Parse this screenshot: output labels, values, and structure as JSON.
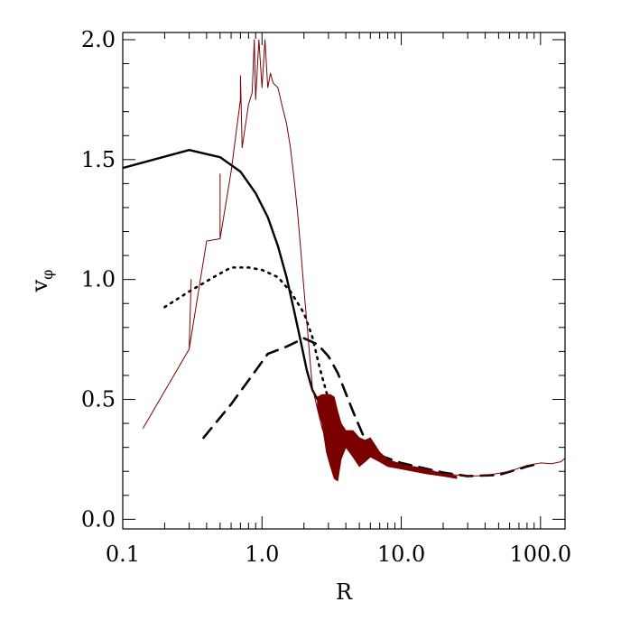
{
  "chart_data": {
    "type": "line",
    "xlabel": "R",
    "ylabel": "v",
    "ylabel_sub": "φ",
    "xscale": "log",
    "xlim": [
      0.1,
      150
    ],
    "ylim": [
      -0.04,
      2.03
    ],
    "x_ticks": [
      {
        "value": 0.1,
        "label": "0.1"
      },
      {
        "value": 1,
        "label": "1.0"
      },
      {
        "value": 10,
        "label": "10.0"
      },
      {
        "value": 100,
        "label": "100.0"
      }
    ],
    "y_ticks": [
      {
        "value": 0.0,
        "label": "0.0"
      },
      {
        "value": 0.5,
        "label": "0.5"
      },
      {
        "value": 1.0,
        "label": "1.0"
      },
      {
        "value": 1.5,
        "label": "1.5"
      },
      {
        "value": 2.0,
        "label": "2.0"
      }
    ],
    "grid": false,
    "series": [
      {
        "style": "solid",
        "color": "#000000",
        "x": [
          0.1,
          0.3,
          0.5,
          0.7,
          0.9,
          1.1,
          1.3,
          1.5,
          1.7,
          1.9,
          2.1,
          2.3,
          2.5
        ],
        "y": [
          1.465,
          1.54,
          1.51,
          1.45,
          1.36,
          1.26,
          1.14,
          1.01,
          0.87,
          0.74,
          0.62,
          0.54,
          0.5
        ]
      },
      {
        "style": "dotted",
        "color": "#000000",
        "x": [
          0.2,
          0.3,
          0.45,
          0.6,
          0.8,
          1.0,
          1.3,
          1.6,
          2.0,
          2.3,
          2.6,
          3.0,
          3.5
        ],
        "y": [
          0.885,
          0.95,
          1.01,
          1.05,
          1.05,
          1.04,
          1.01,
          0.95,
          0.86,
          0.76,
          0.63,
          0.5,
          0.39
        ]
      },
      {
        "style": "dashed",
        "color": "#000000",
        "x": [
          0.38,
          0.6,
          0.9,
          1.1,
          1.5,
          2.0,
          2.5,
          3.0,
          3.5,
          4.5,
          6,
          10,
          20,
          30,
          50,
          80,
          100
        ],
        "y": [
          0.34,
          0.48,
          0.62,
          0.69,
          0.72,
          0.755,
          0.73,
          0.68,
          0.61,
          0.45,
          0.28,
          0.235,
          0.195,
          0.18,
          0.185,
          0.22,
          0.235
        ]
      },
      {
        "style": "thin-noisy",
        "color": "#7a0000",
        "x": [
          0.14,
          0.3,
          0.31,
          0.3,
          0.4,
          0.5,
          0.5,
          0.5,
          0.6,
          0.7,
          0.7,
          0.72,
          0.8,
          0.85,
          0.88,
          0.9,
          0.95,
          1.0,
          1.05,
          1.1,
          1.15,
          1.2,
          1.3,
          1.4,
          1.5,
          1.6,
          1.7,
          1.8,
          1.9,
          2.0,
          2.1,
          2.2,
          2.3,
          2.5,
          2.7,
          2.9,
          3.1,
          3.3,
          3.5,
          3.8,
          4.2,
          4.6,
          5.0,
          5.5,
          6.0,
          6.5,
          7.0,
          8,
          10,
          15,
          20,
          25,
          30,
          40,
          60,
          80,
          100,
          120,
          140,
          150
        ],
        "y": [
          0.38,
          0.71,
          1.0,
          0.71,
          1.16,
          1.17,
          1.44,
          1.17,
          1.45,
          1.75,
          1.85,
          1.55,
          1.73,
          1.78,
          2.0,
          1.75,
          2.0,
          1.8,
          2.0,
          1.8,
          1.86,
          1.82,
          1.8,
          1.72,
          1.65,
          1.55,
          1.42,
          1.28,
          1.12,
          0.96,
          0.82,
          0.68,
          0.55,
          0.46,
          0.38,
          0.33,
          0.3,
          0.26,
          0.3,
          0.33,
          0.34,
          0.32,
          0.3,
          0.31,
          0.32,
          0.3,
          0.27,
          0.24,
          0.23,
          0.2,
          0.19,
          0.185,
          0.18,
          0.182,
          0.2,
          0.225,
          0.235,
          0.232,
          0.24,
          0.255
        ]
      },
      {
        "style": "band",
        "color": "#7a0000",
        "x": [
          2.5,
          2.7,
          2.9,
          3.1,
          3.3,
          3.5,
          3.7,
          4.0,
          4.5,
          5.0,
          5.5,
          6.0,
          7.0,
          8.0,
          10,
          15,
          20,
          25
        ],
        "y_low": [
          0.46,
          0.4,
          0.28,
          0.22,
          0.17,
          0.16,
          0.25,
          0.3,
          0.26,
          0.22,
          0.24,
          0.26,
          0.24,
          0.22,
          0.21,
          0.19,
          0.18,
          0.17
        ],
        "y_high": [
          0.51,
          0.52,
          0.52,
          0.52,
          0.51,
          0.45,
          0.4,
          0.37,
          0.37,
          0.34,
          0.33,
          0.34,
          0.28,
          0.25,
          0.23,
          0.21,
          0.19,
          0.18
        ]
      }
    ]
  }
}
